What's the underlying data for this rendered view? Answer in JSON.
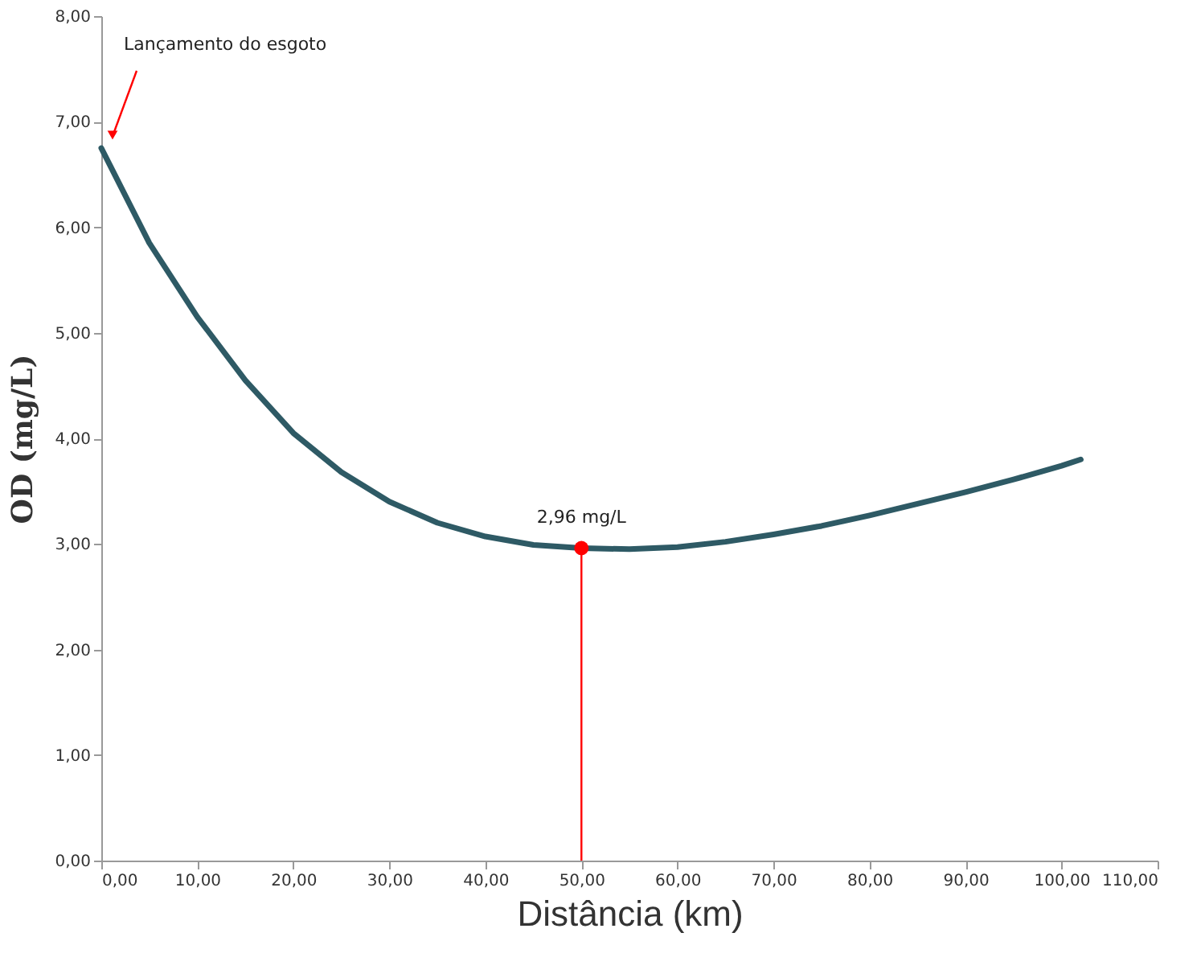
{
  "chart_data": {
    "type": "line",
    "xlabel": "Distância (km)",
    "ylabel": "OD (mg/L)",
    "series": [
      {
        "color": "#2e5a65",
        "x": [
          0,
          5,
          10,
          15,
          20,
          25,
          30,
          35,
          40,
          45,
          50,
          55,
          60,
          65,
          70,
          75,
          80,
          85,
          90,
          95,
          100,
          102
        ],
        "values": [
          6.75,
          5.85,
          5.15,
          4.55,
          4.05,
          3.68,
          3.4,
          3.2,
          3.07,
          2.99,
          2.96,
          2.95,
          2.97,
          3.02,
          3.09,
          3.17,
          3.27,
          3.38,
          3.49,
          3.61,
          3.74,
          3.8
        ]
      },
      {
        "type": "scatter",
        "color": "#ff0000",
        "marker": "circle",
        "x": [
          50
        ],
        "values": [
          2.96
        ]
      }
    ],
    "annotations": [
      "Lançamento do esgoto",
      {
        "text": "2,96 mg/L",
        "x": 50,
        "y": 2.96
      }
    ],
    "ref_lines": [
      {
        "axis": "x",
        "value": 50,
        "color": "#ff0000"
      }
    ],
    "xlim": [
      0,
      110
    ],
    "ylim": [
      0,
      8
    ],
    "xticks": [
      {
        "value": 0,
        "label": "0,00"
      },
      {
        "value": 10,
        "label": "10,00"
      },
      {
        "value": 20,
        "label": "20,00"
      },
      {
        "value": 30,
        "label": "30,00"
      },
      {
        "value": 40,
        "label": "40,00"
      },
      {
        "value": 50,
        "label": "50,00"
      },
      {
        "value": 60,
        "label": "60,00"
      },
      {
        "value": 70,
        "label": "70,00"
      },
      {
        "value": 80,
        "label": "80,00"
      },
      {
        "value": 90,
        "label": "90,00"
      },
      {
        "value": 100,
        "label": "100,00"
      },
      {
        "value": 110,
        "label": "110,00"
      }
    ],
    "yticks": [
      {
        "value": 0,
        "label": "0,00"
      },
      {
        "value": 1,
        "label": "1,00"
      },
      {
        "value": 2,
        "label": "2,00"
      },
      {
        "value": 3,
        "label": "3,00"
      },
      {
        "value": 4,
        "label": "4,00"
      },
      {
        "value": 5,
        "label": "5,00"
      },
      {
        "value": 6,
        "label": "6,00"
      },
      {
        "value": 7,
        "label": "7,00"
      },
      {
        "value": 8,
        "label": "8,00"
      }
    ],
    "grid": false
  }
}
